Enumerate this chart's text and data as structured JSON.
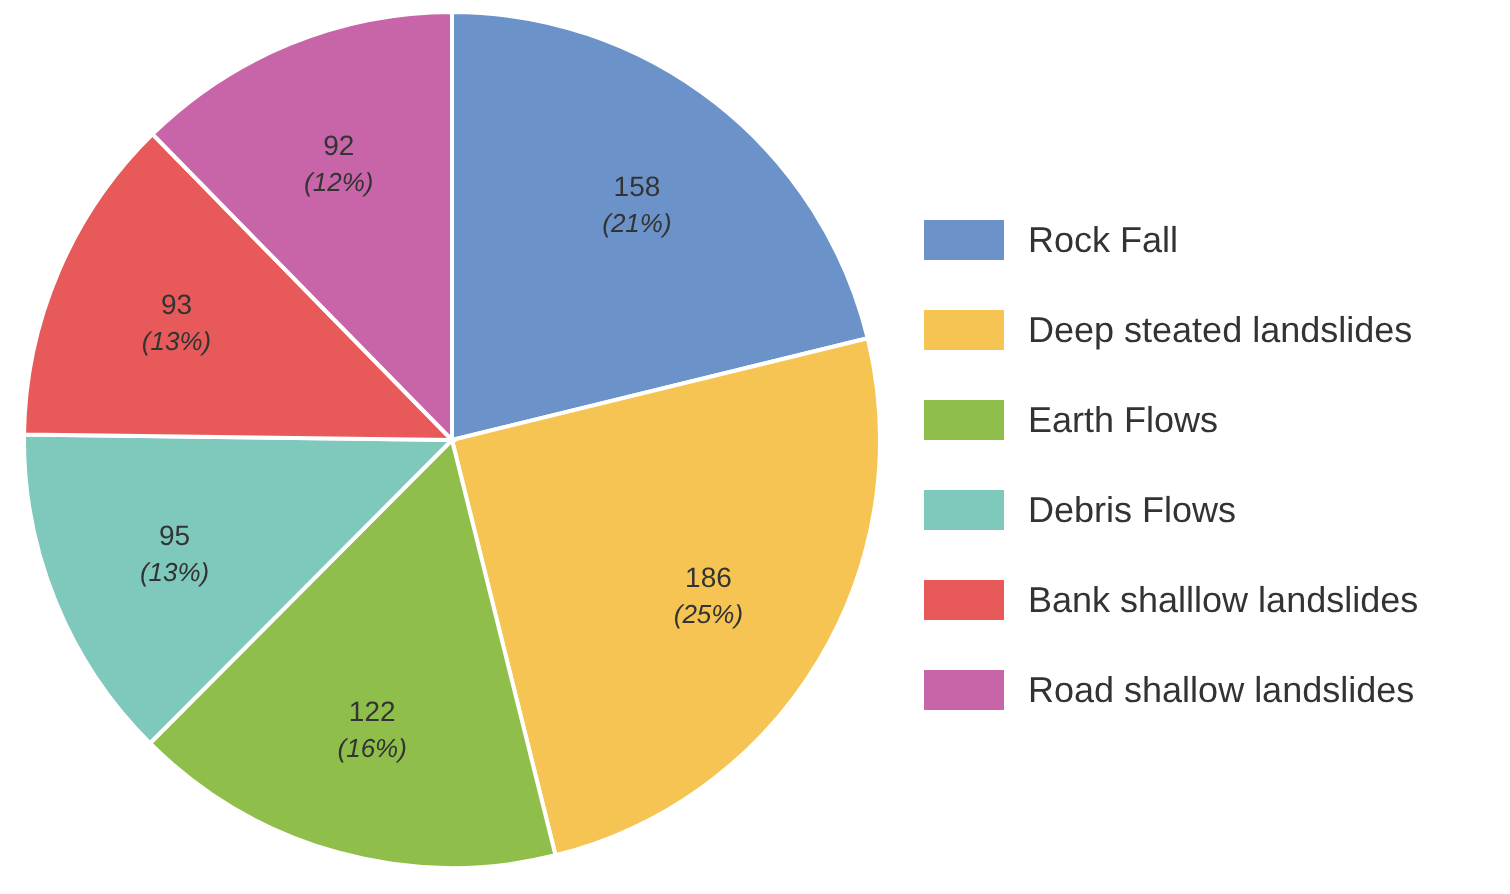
{
  "chart_data": {
    "type": "pie",
    "categories": [
      "Rock Fall",
      "Deep steated landslides",
      "Earth Flows",
      "Debris Flows",
      "Bank shalllow landslides",
      "Road shallow landslides"
    ],
    "values": [
      158,
      186,
      122,
      95,
      93,
      92
    ],
    "colors": [
      "#6b93c9",
      "#f5c452",
      "#8fbf4a",
      "#7fc8bc",
      "#e85a5a",
      "#c865a8"
    ],
    "value_labels": [
      "158\n(21%)",
      "186\n(25%)",
      "122\n(16%)",
      "95\n(13%)",
      "93\n(13%)",
      "92\n(12%)"
    ],
    "legend": "right"
  }
}
